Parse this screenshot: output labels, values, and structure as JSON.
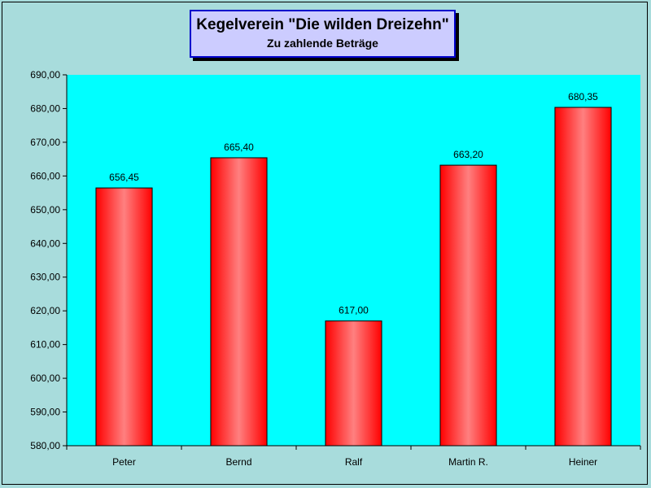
{
  "chart_data": {
    "type": "bar",
    "title": "Kegelverein \"Die wilden Dreizehn\"",
    "subtitle": "Zu zahlende Beträge",
    "categories": [
      "Peter",
      "Bernd",
      "Ralf",
      "Martin R.",
      "Heiner"
    ],
    "values": [
      656.45,
      665.4,
      617.0,
      663.2,
      680.35
    ],
    "value_labels": [
      "656,45",
      "665,40",
      "617,00",
      "663,20",
      "680,35"
    ],
    "ylim": [
      580,
      690
    ],
    "yticks": [
      "580,00",
      "590,00",
      "600,00",
      "610,00",
      "620,00",
      "630,00",
      "640,00",
      "650,00",
      "660,00",
      "670,00",
      "680,00",
      "690,00"
    ],
    "xlabel": "",
    "ylabel": "",
    "grid": false,
    "legend": false,
    "colors": {
      "plot_background": "#00ffff",
      "chart_background": "#a8dcdc",
      "bar_edge": "#ff0000",
      "bar_center": "#ff8080",
      "title_box": "#ccccff",
      "title_border": "#0000cc"
    }
  }
}
